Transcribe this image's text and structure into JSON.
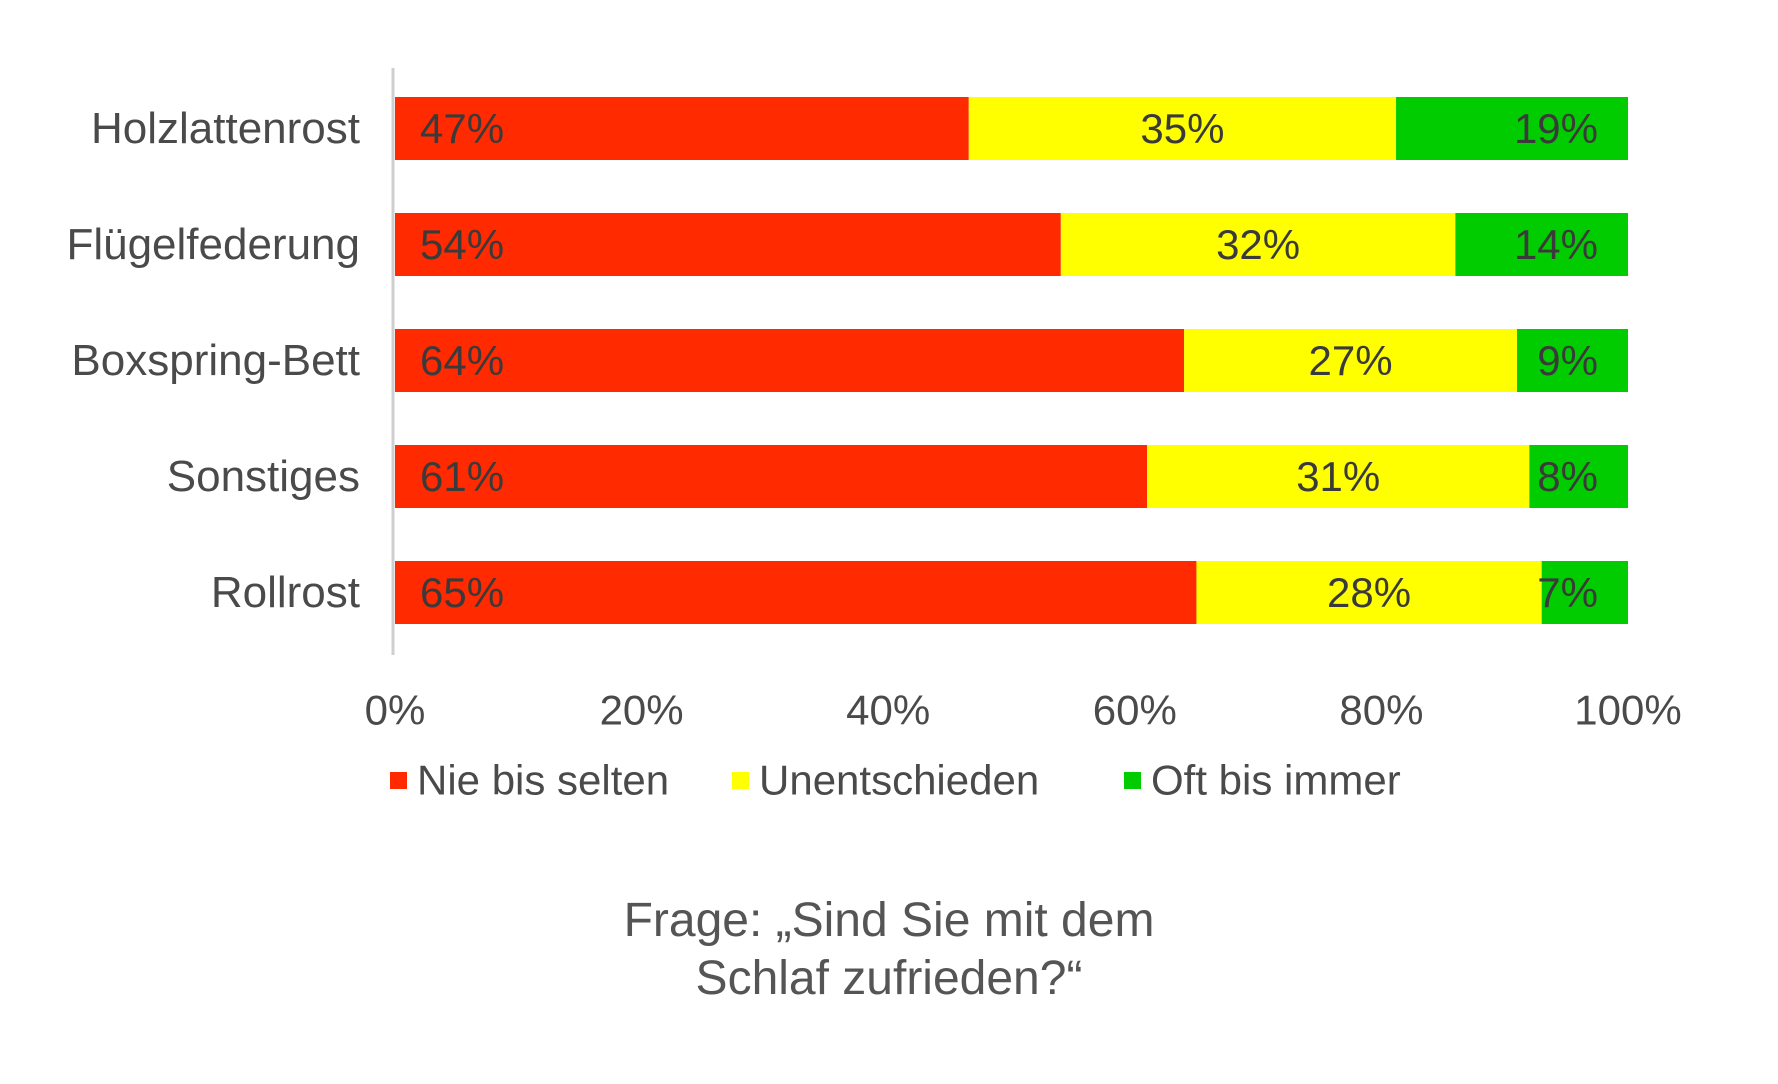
{
  "chart_data": {
    "type": "bar",
    "orientation": "horizontal",
    "stacked": true,
    "categories": [
      "Holzlattenrost",
      "Flügelfederung",
      "Boxspring-Bett",
      "Sonstiges",
      "Rollrost"
    ],
    "series": [
      {
        "name": "Nie bis selten",
        "color": "#ff2a00",
        "values": [
          47,
          54,
          64,
          61,
          65
        ],
        "labels": [
          "47%",
          "54%",
          "64%",
          "61%",
          "65%"
        ]
      },
      {
        "name": "Unentschieden",
        "color": "#ffff00",
        "values": [
          35,
          32,
          27,
          31,
          28
        ],
        "labels": [
          "35%",
          "32%",
          "27%",
          "31%",
          "28%"
        ]
      },
      {
        "name": "Oft bis immer",
        "color": "#00cc00",
        "values": [
          19,
          14,
          9,
          8,
          7
        ],
        "labels": [
          "19%",
          "14%",
          "9%",
          "8%",
          "7%"
        ]
      }
    ],
    "xlim": [
      0,
      100
    ],
    "xticks": [
      0,
      20,
      40,
      60,
      80,
      100
    ],
    "xtick_labels": [
      "0%",
      "20%",
      "40%",
      "60%",
      "80%",
      "100%"
    ],
    "grid": false,
    "legend_position": "bottom",
    "title": "",
    "xlabel": "",
    "ylabel": ""
  },
  "caption": {
    "line1": "Frage: „Sind Sie mit dem",
    "line2": "Schlaf zufrieden?“"
  }
}
